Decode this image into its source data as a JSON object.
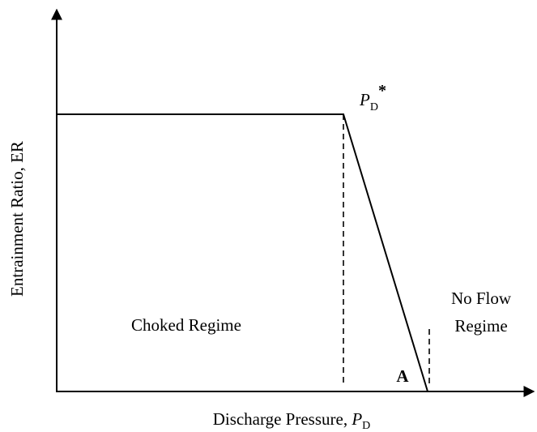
{
  "diagram": {
    "y_axis_label": "Entrainment Ratio, ER",
    "x_axis_label": {
      "text": "Discharge Pressure, ",
      "symbol": "P",
      "subscript": "D"
    },
    "critical_point": {
      "symbol": "P",
      "subscript": "D",
      "superscript": "*"
    },
    "regions": {
      "choked": "Choked Regime",
      "no_flow": [
        "No Flow",
        "Regime"
      ]
    },
    "point_label": "A"
  }
}
